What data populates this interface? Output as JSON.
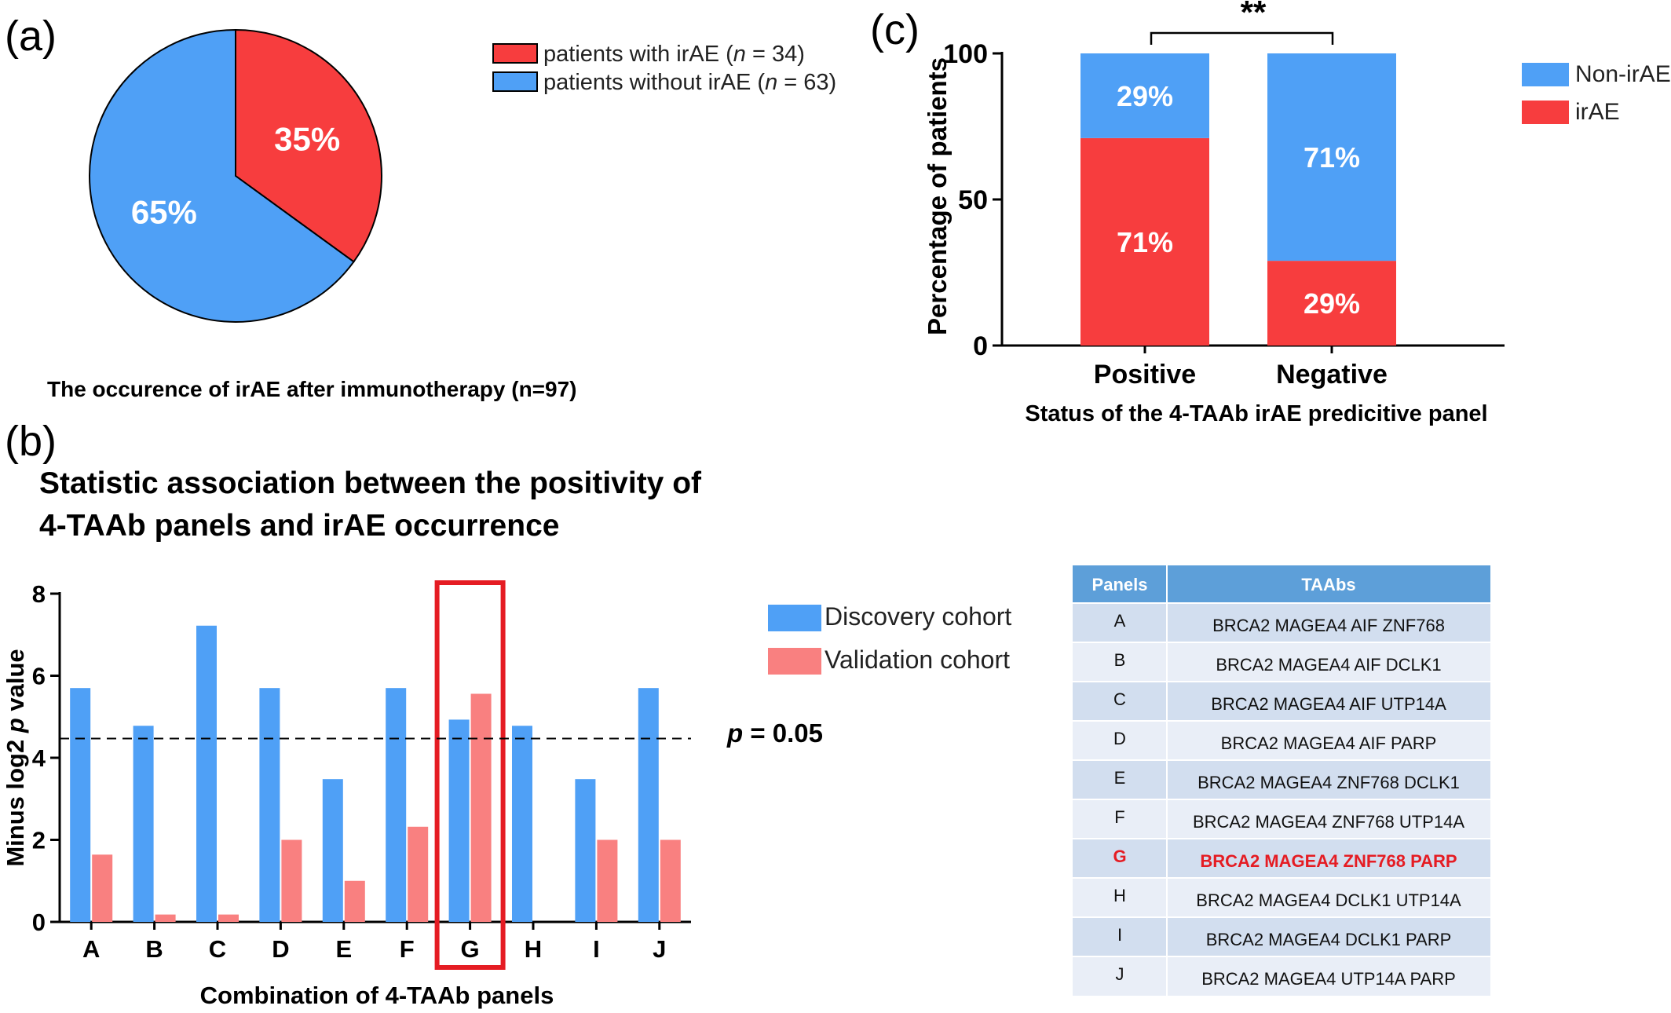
{
  "colors": {
    "red": "#f73d3e",
    "blue": "#4fa0f6",
    "validation": "#f98080",
    "table_header": "#5d9fd9",
    "table_row_a": "#d2deef",
    "table_row_b": "#e9eef7",
    "highlight": "#e51c23"
  },
  "panel_labels": {
    "a": "(a)",
    "b": "(b)",
    "c": "(c)"
  },
  "pie": {
    "caption": "The occurence of irAE after immunotherapy (n=97)",
    "legend": [
      {
        "pre": "patients with irAE (",
        "italic": "n",
        "post": " = 34)",
        "color_key": "red"
      },
      {
        "pre": "patients without irAE (",
        "italic": "n",
        "post": " = 63)",
        "color_key": "blue"
      }
    ]
  },
  "bars_b": {
    "title_line1": "Statistic association between the positivity of",
    "title_line2": "4-TAAb panels and irAE occurrence",
    "threshold_label_italic": "p",
    "threshold_label_rest": " = 0.05",
    "legend": [
      "Discovery cohort",
      "Validation cohort"
    ]
  },
  "bars_c": {
    "significance": "**",
    "legend": [
      "Non-irAE",
      "irAE"
    ]
  },
  "table": {
    "headers": [
      "Panels",
      "TAAbs"
    ],
    "rows": [
      {
        "panel": "A",
        "taabs": "BRCA2 MAGEA4 AIF ZNF768",
        "highlight": false
      },
      {
        "panel": "B",
        "taabs": "BRCA2 MAGEA4 AIF DCLK1",
        "highlight": false
      },
      {
        "panel": "C",
        "taabs": "BRCA2 MAGEA4 AIF UTP14A",
        "highlight": false
      },
      {
        "panel": "D",
        "taabs": "BRCA2 MAGEA4 AIF PARP",
        "highlight": false
      },
      {
        "panel": "E",
        "taabs": "BRCA2 MAGEA4 ZNF768 DCLK1",
        "highlight": false
      },
      {
        "panel": "F",
        "taabs": "BRCA2 MAGEA4 ZNF768 UTP14A",
        "highlight": false
      },
      {
        "panel": "G",
        "taabs": "BRCA2 MAGEA4 ZNF768 PARP",
        "highlight": true
      },
      {
        "panel": "H",
        "taabs": "BRCA2 MAGEA4 DCLK1 UTP14A",
        "highlight": false
      },
      {
        "panel": "I",
        "taabs": "BRCA2 MAGEA4 DCLK1 PARP",
        "highlight": false
      },
      {
        "panel": "J",
        "taabs": "BRCA2 MAGEA4 UTP14A  PARP",
        "highlight": false
      }
    ]
  },
  "chart_data": [
    {
      "type": "pie",
      "title": "",
      "slices": [
        {
          "label": "35%",
          "value": 35,
          "color": "#f73d3e"
        },
        {
          "label": "65%",
          "value": 65,
          "color": "#4fa0f6"
        }
      ],
      "start_angle_deg": 0,
      "direction": "clockwise",
      "legend_position": "right"
    },
    {
      "type": "bar",
      "title": "",
      "categories": [
        "A",
        "B",
        "C",
        "D",
        "E",
        "F",
        "G",
        "H",
        "I",
        "J"
      ],
      "series": [
        {
          "name": "Discovery cohort",
          "color": "#4fa0f6",
          "values": [
            5.7,
            4.78,
            7.22,
            5.7,
            3.48,
            5.7,
            4.93,
            4.78,
            3.48,
            5.7
          ]
        },
        {
          "name": "Validation cohort",
          "color": "#f98080",
          "values": [
            1.64,
            0.18,
            0.18,
            2.0,
            1.0,
            2.32,
            5.56,
            0,
            2.0,
            2.0
          ]
        }
      ],
      "threshold": 4.47,
      "highlight_category": "G",
      "xlabel": "Combination of 4-TAAb panels",
      "ylabel_pre": "Minus log2 ",
      "ylabel_italic": "p",
      "ylabel_post": " value",
      "ylim": [
        0,
        8
      ],
      "yticks": [
        0,
        2,
        4,
        6,
        8
      ],
      "legend_position": "right"
    },
    {
      "type": "bar",
      "stacked": true,
      "title": "",
      "categories": [
        "Positive",
        "Negative"
      ],
      "series": [
        {
          "name": "irAE",
          "color": "#f73d3e",
          "values": [
            71,
            29
          ],
          "labels": [
            "71%",
            "29%"
          ]
        },
        {
          "name": "Non-irAE",
          "color": "#4fa0f6",
          "values": [
            29,
            71
          ],
          "labels": [
            "29%",
            "71%"
          ]
        }
      ],
      "xlabel": "Status of the 4-TAAb irAE predicitive panel",
      "ylabel": "Percentage of patients",
      "ylim": [
        0,
        100
      ],
      "yticks": [
        0,
        50,
        100
      ],
      "legend_position": "right"
    }
  ]
}
